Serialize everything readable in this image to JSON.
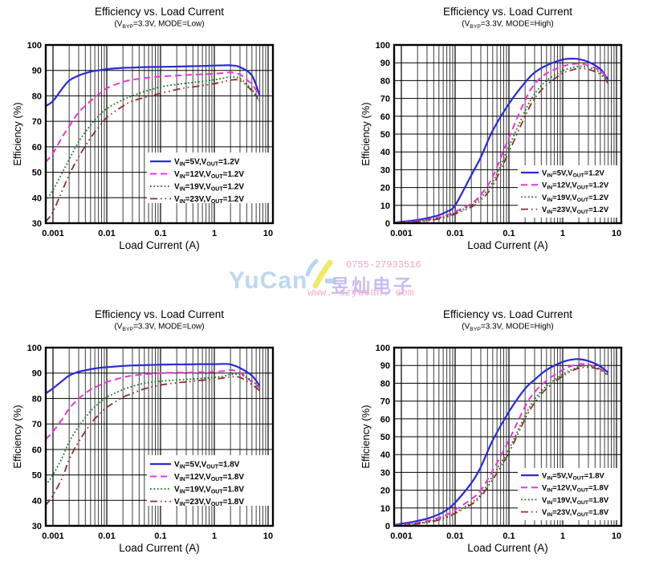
{
  "watermark": {
    "phone": "0755-27933516",
    "brand_latin": "YuCan",
    "brand_cjk": "昱灿电子",
    "url": "www. szyucan. com",
    "colors": {
      "phone": "#f29cb6",
      "brand_latin": "#b4d3ee",
      "brand_cjk": "#c3b3f2",
      "url": "#f6a6c3",
      "logo_yellow": "#ece655",
      "logo_blue": "#aed0ee"
    }
  },
  "style": {
    "grid_major_color": "#000000",
    "grid_minor_color": "#3f3f3f",
    "border_color": "#000000",
    "series_colors": {
      "vin5": "#2a2ad8",
      "vin12": "#f031dc",
      "vin19": "#1b7b1b",
      "vin23": "#8c2f2f"
    }
  },
  "chart_data": [
    {
      "type": "line",
      "title": "Efficiency vs. Load Current",
      "subtitle": {
        "pre": "(V",
        "sub": "BYP",
        "post": "=3.3V, MODE=Low)"
      },
      "xlabel": "Load Current (A)",
      "ylabel": "Efficiency (%)",
      "x_scale": "log",
      "xlim": [
        0.00073,
        12.5
      ],
      "ylim": [
        30,
        100
      ],
      "ytick_step": 10,
      "x_ticks": [
        "0.001",
        "0.01",
        "0.1",
        "1",
        "10"
      ],
      "x": [
        0.00073,
        0.001,
        0.0015,
        0.002,
        0.003,
        0.005,
        0.007,
        0.01,
        0.02,
        0.03,
        0.05,
        0.1,
        0.2,
        0.3,
        0.5,
        1,
        1.5,
        2,
        3,
        5,
        7
      ],
      "series": [
        {
          "label": {
            "pre": "V",
            "sub1": "IN",
            "mid": "=5V,V",
            "sub2": "OUT",
            "post": "=1.2V"
          },
          "color": "#2a2ad8",
          "style": "solid",
          "values": [
            76,
            78,
            83,
            86,
            88,
            89.5,
            90,
            90.5,
            91,
            91.1,
            91.3,
            91.4,
            91.5,
            91.6,
            91.7,
            91.9,
            92,
            92,
            91.3,
            88,
            80
          ]
        },
        {
          "label": {
            "pre": "V",
            "sub1": "IN",
            "mid": "=12V,V",
            "sub2": "OUT",
            "post": "=1.2V"
          },
          "color": "#f031dc",
          "style": "dashed",
          "values": [
            54,
            57.5,
            64,
            68,
            73.5,
            78,
            80.5,
            83,
            85.5,
            86.3,
            87,
            87.6,
            88,
            88.2,
            88.4,
            88.7,
            89,
            89.2,
            88.4,
            84.5,
            80
          ]
        },
        {
          "label": {
            "pre": "V",
            "sub1": "IN",
            "mid": "=19V,V",
            "sub2": "OUT",
            "post": "=1.2V"
          },
          "color": "#1b7b1b",
          "style": "dotted",
          "values": [
            38.5,
            43,
            50,
            55,
            62,
            68.5,
            72,
            75,
            78.5,
            80,
            81.7,
            83.5,
            84.5,
            85,
            85.5,
            86.3,
            87,
            87.4,
            86.8,
            82.5,
            78
          ]
        },
        {
          "label": {
            "pre": "V",
            "sub1": "IN",
            "mid": "=23V,V",
            "sub2": "OUT",
            "post": "=1.2V"
          },
          "color": "#8c2f2f",
          "style": "dashdotdot",
          "values": [
            30.5,
            34.5,
            43,
            49,
            56,
            63.5,
            67.5,
            71.5,
            76,
            78,
            79.3,
            81,
            82.5,
            83.2,
            83.8,
            84.8,
            85.6,
            86.2,
            86,
            82,
            77.5
          ]
        }
      ]
    },
    {
      "type": "line",
      "title": "Efficiency vs. Load Current",
      "subtitle": {
        "pre": "(V",
        "sub": "BYP",
        "post": "=3.3V, MODE=High)"
      },
      "xlabel": "Load Current (A)",
      "ylabel": "Efficiency (%)",
      "x_scale": "log",
      "xlim": [
        0.00073,
        12.5
      ],
      "ylim": [
        0,
        100
      ],
      "ytick_step": 10,
      "x_ticks": [
        "0.001",
        "0.01",
        "0.1",
        "1",
        "10"
      ],
      "x": [
        0.00073,
        0.001,
        0.0015,
        0.002,
        0.003,
        0.005,
        0.007,
        0.01,
        0.02,
        0.03,
        0.05,
        0.1,
        0.2,
        0.3,
        0.5,
        1,
        1.5,
        2,
        3,
        5,
        7
      ],
      "series": [
        {
          "label": {
            "pre": "V",
            "sub1": "IN",
            "mid": "=5V,V",
            "sub2": "OUT",
            "post": "=1.2V"
          },
          "color": "#2a2ad8",
          "style": "solid",
          "values": [
            0.3,
            0.8,
            1.3,
            1.8,
            2.8,
            4.5,
            6.5,
            10,
            27,
            37,
            52,
            67,
            79,
            84.5,
            88.5,
            91.8,
            92.3,
            92,
            90.5,
            86.5,
            80.5
          ]
        },
        {
          "label": {
            "pre": "V",
            "sub1": "IN",
            "mid": "=12V,V",
            "sub2": "OUT",
            "post": "=1.2V"
          },
          "color": "#f031dc",
          "style": "dashed",
          "values": [
            0.2,
            0.5,
            0.9,
            1.2,
            2,
            3.2,
            4.5,
            6.5,
            11,
            16,
            26,
            48,
            69,
            78,
            84,
            88,
            89.2,
            89.5,
            88.5,
            85.5,
            81
          ]
        },
        {
          "label": {
            "pre": "V",
            "sub1": "IN",
            "mid": "=19V,V",
            "sub2": "OUT",
            "post": "=1.2V"
          },
          "color": "#1b7b1b",
          "style": "dotted",
          "values": [
            0.2,
            0.4,
            0.7,
            1,
            1.7,
            2.8,
            4,
            5.8,
            10,
            14.5,
            23,
            43,
            63,
            72.5,
            80,
            85.5,
            87.2,
            88,
            87.5,
            84.5,
            80
          ]
        },
        {
          "label": {
            "pre": "V",
            "sub1": "IN",
            "mid": "=23V,V",
            "sub2": "OUT",
            "post": "=1.2V"
          },
          "color": "#8c2f2f",
          "style": "dashdotdot",
          "values": [
            0.1,
            0.3,
            0.5,
            0.8,
            1.4,
            2.4,
            3.5,
            5.2,
            9,
            13,
            21,
            40,
            60,
            70,
            77.5,
            84,
            86,
            86.8,
            86.3,
            83.5,
            78.5
          ]
        }
      ]
    },
    {
      "type": "line",
      "title": "Efficiency vs. Load Current",
      "subtitle": {
        "pre": "(V",
        "sub": "BYP",
        "post": "=3.3V, MODE=Low)"
      },
      "xlabel": "Load Current (A)",
      "ylabel": "Efficiency (%)",
      "x_scale": "log",
      "xlim": [
        0.00073,
        12.5
      ],
      "ylim": [
        30,
        100
      ],
      "ytick_step": 10,
      "x_ticks": [
        "0.001",
        "0.01",
        "0.1",
        "1",
        "10"
      ],
      "x": [
        0.00073,
        0.001,
        0.0015,
        0.002,
        0.003,
        0.005,
        0.007,
        0.01,
        0.02,
        0.03,
        0.05,
        0.1,
        0.2,
        0.3,
        0.5,
        1,
        1.5,
        2,
        3,
        5,
        7
      ],
      "series": [
        {
          "label": {
            "pre": "V",
            "sub1": "IN",
            "mid": "=5V,V",
            "sub2": "OUT",
            "post": "=1.8V"
          },
          "color": "#2a2ad8",
          "style": "solid",
          "values": [
            82,
            84,
            87,
            89,
            90.5,
            91.5,
            92,
            92.3,
            92.8,
            93,
            93.1,
            93.3,
            93.4,
            93.4,
            93.5,
            93.5,
            93.6,
            93.4,
            92,
            89,
            85
          ]
        },
        {
          "label": {
            "pre": "V",
            "sub1": "IN",
            "mid": "=12V,V",
            "sub2": "OUT",
            "post": "=1.8V"
          },
          "color": "#f031dc",
          "style": "dashed",
          "values": [
            64,
            67,
            72,
            76,
            80,
            83.5,
            85,
            86.5,
            88.3,
            89,
            89.5,
            90,
            90.2,
            90.2,
            90.3,
            90.5,
            90.8,
            91.2,
            90.2,
            86.5,
            84
          ]
        },
        {
          "label": {
            "pre": "V",
            "sub1": "IN",
            "mid": "=19V,V",
            "sub2": "OUT",
            "post": "=1.8V"
          },
          "color": "#1b7b1b",
          "style": "dotted",
          "values": [
            46,
            50,
            57,
            63,
            69,
            75,
            78,
            80.5,
            83.5,
            84.8,
            86,
            86.8,
            87.3,
            87.5,
            87.8,
            88.3,
            88.8,
            89.4,
            89.4,
            87,
            84
          ]
        },
        {
          "label": {
            "pre": "V",
            "sub1": "IN",
            "mid": "=23V,V",
            "sub2": "OUT",
            "post": "=1.8V"
          },
          "color": "#8c2f2f",
          "style": "dashdotdot",
          "values": [
            38,
            42,
            49,
            56,
            63,
            70,
            73.5,
            76.5,
            80.5,
            82,
            83.8,
            85.3,
            86.2,
            86.5,
            87,
            87.6,
            88.1,
            88.5,
            88.3,
            85.5,
            83
          ]
        }
      ]
    },
    {
      "type": "line",
      "title": "Efficiency vs. Load Current",
      "subtitle": {
        "pre": "(V",
        "sub": "BYP",
        "post": "=3.3V, MODE=High)"
      },
      "xlabel": "Load Current (A)",
      "ylabel": "Efficiency (%)",
      "x_scale": "log",
      "xlim": [
        0.00073,
        12.5
      ],
      "ylim": [
        0,
        100
      ],
      "ytick_step": 10,
      "x_ticks": [
        "0.001",
        "0.01",
        "0.1",
        "1",
        "10"
      ],
      "x": [
        0.00073,
        0.001,
        0.0015,
        0.002,
        0.003,
        0.005,
        0.007,
        0.01,
        0.02,
        0.03,
        0.05,
        0.1,
        0.2,
        0.3,
        0.5,
        1,
        1.5,
        2,
        3,
        5,
        7
      ],
      "series": [
        {
          "label": {
            "pre": "V",
            "sub1": "IN",
            "mid": "=5V,V",
            "sub2": "OUT",
            "post": "=1.8V"
          },
          "color": "#2a2ad8",
          "style": "solid",
          "values": [
            0.5,
            1.2,
            2,
            2.8,
            4,
            6.5,
            9,
            13,
            24,
            33,
            48,
            64,
            77,
            82,
            87.5,
            92,
            93.3,
            93.5,
            92.5,
            89.5,
            86
          ]
        },
        {
          "label": {
            "pre": "V",
            "sub1": "IN",
            "mid": "=12V,V",
            "sub2": "OUT",
            "post": "=1.8V"
          },
          "color": "#f031dc",
          "style": "dashed",
          "values": [
            0.3,
            0.7,
            1.2,
            1.7,
            2.7,
            4.5,
            6.3,
            9,
            15,
            20,
            31,
            48,
            67,
            75,
            81.5,
            87.5,
            89.8,
            90.8,
            90.5,
            88,
            85
          ]
        },
        {
          "label": {
            "pre": "V",
            "sub1": "IN",
            "mid": "=19V,V",
            "sub2": "OUT",
            "post": "=1.8V"
          },
          "color": "#1b7b1b",
          "style": "dotted",
          "values": [
            0.2,
            0.5,
            0.9,
            1.3,
            2.2,
            3.7,
            5.3,
            7.5,
            13,
            17.5,
            28,
            43,
            62,
            71,
            78.5,
            85,
            87.8,
            89.3,
            89.8,
            88,
            84.5
          ]
        },
        {
          "label": {
            "pre": "V",
            "sub1": "IN",
            "mid": "=23V,V",
            "sub2": "OUT",
            "post": "=1.8V"
          },
          "color": "#8c2f2f",
          "style": "dashdotdot",
          "values": [
            0.2,
            0.4,
            0.8,
            1.1,
            1.9,
            3.3,
            4.8,
            7,
            12,
            16.5,
            26,
            41,
            60,
            69,
            77,
            84,
            87,
            88.5,
            89,
            87.5,
            84
          ]
        }
      ]
    }
  ]
}
